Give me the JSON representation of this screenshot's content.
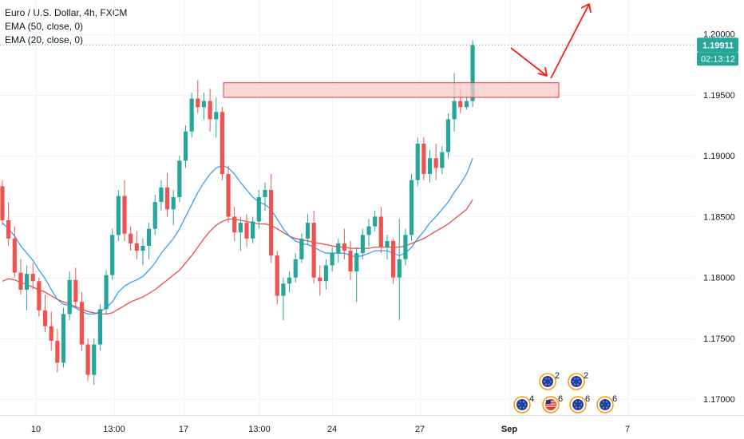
{
  "legend": {
    "symbol": "Euro / U.S. Dollar, 4h, FXCM",
    "ema50": "EMA (50, close, 0)",
    "ema20": "EMA (20, close, 0)"
  },
  "price_axis": {
    "last_price": "1.19911",
    "countdown": "02:13:12"
  },
  "colors": {
    "up": "#26a69a",
    "down": "#ef5350",
    "ema20": "#2196f3",
    "ema50": "#e53935",
    "zone_fill": "#f8c9c9",
    "zone_border": "#e53935",
    "arrow": "#ff1a1a",
    "label_bg": "#26a69a",
    "last_price_line": "#26a69a"
  },
  "chart_data": {
    "type": "candlestick",
    "title": "Euro / U.S. Dollar, 4h, FXCM",
    "ylim": [
      1.1687,
      1.2028
    ],
    "y_ticks": [
      "1.20000",
      "1.19500",
      "1.19000",
      "1.18500",
      "1.18000",
      "1.17500",
      "1.17000"
    ],
    "x_ticks": [
      "10",
      "13:00",
      "17",
      "13:00",
      "24",
      "27",
      "Sep",
      "7"
    ],
    "candles": [
      [
        1.1875,
        1.188,
        1.1843,
        1.1847
      ],
      [
        1.1847,
        1.1862,
        1.1826,
        1.1832
      ],
      [
        1.1832,
        1.1842,
        1.18,
        1.1804
      ],
      [
        1.1804,
        1.1815,
        1.1786,
        1.179
      ],
      [
        1.179,
        1.181,
        1.1773,
        1.1803
      ],
      [
        1.1803,
        1.1812,
        1.179,
        1.1797
      ],
      [
        1.1797,
        1.18,
        1.1768,
        1.1773
      ],
      [
        1.1773,
        1.1786,
        1.1755,
        1.176
      ],
      [
        1.176,
        1.1772,
        1.174,
        1.1748
      ],
      [
        1.1748,
        1.1758,
        1.1722,
        1.173
      ],
      [
        1.173,
        1.1775,
        1.1726,
        1.177
      ],
      [
        1.177,
        1.1805,
        1.1765,
        1.1798
      ],
      [
        1.1798,
        1.1808,
        1.1775,
        1.178
      ],
      [
        1.178,
        1.1788,
        1.174,
        1.1745
      ],
      [
        1.1745,
        1.175,
        1.1715,
        1.172
      ],
      [
        1.172,
        1.175,
        1.1712,
        1.1745
      ],
      [
        1.1745,
        1.1778,
        1.174,
        1.1774
      ],
      [
        1.1774,
        1.1806,
        1.177,
        1.1802
      ],
      [
        1.1802,
        1.184,
        1.1798,
        1.1835
      ],
      [
        1.1835,
        1.1872,
        1.183,
        1.1867
      ],
      [
        1.1867,
        1.188,
        1.183,
        1.1836
      ],
      [
        1.1836,
        1.1842,
        1.1822,
        1.1828
      ],
      [
        1.1828,
        1.1838,
        1.1815,
        1.1822
      ],
      [
        1.1822,
        1.1832,
        1.181,
        1.1826
      ],
      [
        1.1826,
        1.1845,
        1.1815,
        1.184
      ],
      [
        1.184,
        1.1868,
        1.1835,
        1.1862
      ],
      [
        1.1862,
        1.188,
        1.1855,
        1.1874
      ],
      [
        1.1874,
        1.1886,
        1.185,
        1.1856
      ],
      [
        1.1856,
        1.1872,
        1.1843,
        1.1866
      ],
      [
        1.1866,
        1.19,
        1.1862,
        1.1896
      ],
      [
        1.1896,
        1.1925,
        1.189,
        1.192
      ],
      [
        1.192,
        1.1952,
        1.1915,
        1.1947
      ],
      [
        1.1947,
        1.1962,
        1.1935,
        1.194
      ],
      [
        1.194,
        1.1952,
        1.193,
        1.1945
      ],
      [
        1.1945,
        1.1955,
        1.192,
        1.193
      ],
      [
        1.193,
        1.1948,
        1.1915,
        1.1936
      ],
      [
        1.1936,
        1.194,
        1.188,
        1.1885
      ],
      [
        1.1885,
        1.1892,
        1.1845,
        1.185
      ],
      [
        1.185,
        1.1858,
        1.183,
        1.1837
      ],
      [
        1.1837,
        1.185,
        1.1822,
        1.1845
      ],
      [
        1.1845,
        1.1852,
        1.1825,
        1.1832
      ],
      [
        1.1832,
        1.185,
        1.1828,
        1.1846
      ],
      [
        1.1846,
        1.1872,
        1.184,
        1.1866
      ],
      [
        1.1866,
        1.1878,
        1.1855,
        1.1872
      ],
      [
        1.1872,
        1.1885,
        1.1812,
        1.1818
      ],
      [
        1.1818,
        1.1822,
        1.1778,
        1.1785
      ],
      [
        1.1785,
        1.18,
        1.1765,
        1.1795
      ],
      [
        1.1795,
        1.1805,
        1.1788,
        1.18
      ],
      [
        1.18,
        1.182,
        1.1796,
        1.1815
      ],
      [
        1.1815,
        1.1836,
        1.1812,
        1.1832
      ],
      [
        1.1832,
        1.1852,
        1.1827,
        1.1845
      ],
      [
        1.1845,
        1.1855,
        1.1795,
        1.18
      ],
      [
        1.18,
        1.181,
        1.1785,
        1.1797
      ],
      [
        1.1797,
        1.1815,
        1.179,
        1.181
      ],
      [
        1.181,
        1.1825,
        1.1805,
        1.182
      ],
      [
        1.182,
        1.1832,
        1.1812,
        1.1828
      ],
      [
        1.1828,
        1.184,
        1.1815,
        1.1822
      ],
      [
        1.1822,
        1.183,
        1.1798,
        1.1805
      ],
      [
        1.1805,
        1.1825,
        1.178,
        1.182
      ],
      [
        1.182,
        1.184,
        1.1815,
        1.1835
      ],
      [
        1.1835,
        1.1848,
        1.1825,
        1.1842
      ],
      [
        1.1842,
        1.1855,
        1.1838,
        1.185
      ],
      [
        1.185,
        1.1858,
        1.182,
        1.1825
      ],
      [
        1.1825,
        1.1835,
        1.1815,
        1.183
      ],
      [
        1.183,
        1.1832,
        1.1795,
        1.18
      ],
      [
        1.18,
        1.1848,
        1.1765,
        1.1815
      ],
      [
        1.1815,
        1.184,
        1.181,
        1.1835
      ],
      [
        1.1835,
        1.1885,
        1.183,
        1.188
      ],
      [
        1.188,
        1.1915,
        1.1875,
        1.191
      ],
      [
        1.191,
        1.1915,
        1.188,
        1.1885
      ],
      [
        1.1885,
        1.1905,
        1.1878,
        1.1898
      ],
      [
        1.1898,
        1.191,
        1.188,
        1.189
      ],
      [
        1.189,
        1.1908,
        1.1885,
        1.1903
      ],
      [
        1.1903,
        1.1935,
        1.1898,
        1.193
      ],
      [
        1.193,
        1.1968,
        1.192,
        1.1945
      ],
      [
        1.1945,
        1.1955,
        1.1935,
        1.194
      ],
      [
        1.194,
        1.195,
        1.1938,
        1.1945
      ],
      [
        1.1945,
        1.1995,
        1.194,
        1.1991
      ]
    ],
    "ema20": [
      1.1845,
      1.184,
      1.1834,
      1.1826,
      1.182,
      1.1814,
      1.1806,
      1.1799,
      1.179,
      1.1782,
      1.1778,
      1.1777,
      1.1775,
      1.1772,
      1.177,
      1.177,
      1.1772,
      1.1775,
      1.178,
      1.1788,
      1.1793,
      1.1796,
      1.1798,
      1.1801,
      1.1806,
      1.1812,
      1.182,
      1.1826,
      1.1832,
      1.184,
      1.185,
      1.186,
      1.187,
      1.1878,
      1.1885,
      1.189,
      1.1892,
      1.189,
      1.1885,
      1.1878,
      1.1872,
      1.1866,
      1.1862,
      1.186,
      1.1856,
      1.1848,
      1.184,
      1.1834,
      1.183,
      1.1828,
      1.1827,
      1.1825,
      1.1822,
      1.182,
      1.182,
      1.182,
      1.182,
      1.1818,
      1.1817,
      1.1818,
      1.182,
      1.1822,
      1.1822,
      1.1822,
      1.182,
      1.1818,
      1.182,
      1.1825,
      1.1832,
      1.1838,
      1.1845,
      1.185,
      1.1856,
      1.1862,
      1.187,
      1.1877,
      1.1885,
      1.1898
    ],
    "ema50": [
      1.1797,
      1.1799,
      1.1798,
      1.1796,
      1.1794,
      1.1792,
      1.179,
      1.1788,
      1.1785,
      1.1782,
      1.178,
      1.1778,
      1.1776,
      1.1774,
      1.1772,
      1.1771,
      1.177,
      1.177,
      1.1771,
      1.1774,
      1.1777,
      1.178,
      1.1782,
      1.1784,
      1.1787,
      1.179,
      1.1794,
      1.1798,
      1.1802,
      1.1806,
      1.1812,
      1.1818,
      1.1825,
      1.1832,
      1.1838,
      1.1843,
      1.1846,
      1.1848,
      1.1848,
      1.1847,
      1.1846,
      1.1845,
      1.1844,
      1.1844,
      1.1843,
      1.184,
      1.1837,
      1.1834,
      1.1832,
      1.1831,
      1.183,
      1.1829,
      1.1828,
      1.1827,
      1.1826,
      1.1825,
      1.1825,
      1.1824,
      1.1824,
      1.1824,
      1.1824,
      1.1825,
      1.1825,
      1.1825,
      1.1825,
      1.1825,
      1.1826,
      1.1828,
      1.183,
      1.1832,
      1.1835,
      1.1838,
      1.1841,
      1.1844,
      1.1848,
      1.1852,
      1.1856,
      1.1864
    ],
    "resistance_zone": {
      "from": 1.1948,
      "to": 1.196
    },
    "events": [
      {
        "flag": "EU",
        "count": "4"
      },
      {
        "flag": "EU",
        "count": "2"
      },
      {
        "flag": "US",
        "count": "6"
      },
      {
        "flag": "EU",
        "count": "2"
      },
      {
        "flag": "EU",
        "count": "6"
      },
      {
        "flag": "EU",
        "count": "6"
      }
    ]
  }
}
